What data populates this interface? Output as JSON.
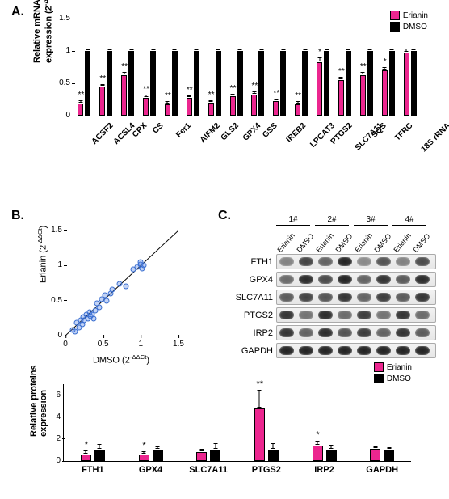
{
  "colors": {
    "erianin": "#ec268f",
    "dmso": "#000000",
    "scatter_point_fill": "rgba(80,130,230,0.35)",
    "scatter_point_stroke": "#3b6fd0",
    "background": "#ffffff",
    "axis": "#000000"
  },
  "panel_labels": {
    "A": "A.",
    "B": "B.",
    "C": "C."
  },
  "legend": {
    "erianin": "Erianin",
    "dmso": "DMSO"
  },
  "panelA": {
    "ylabel_line1": "Relative mRNAs",
    "ylabel_line2": "expression (2",
    "ylabel_sup": "-ΔΔCt",
    "ylabel_tail": ")",
    "ylim": [
      0,
      1.5
    ],
    "yticks": [
      0,
      0.5,
      1,
      1.5
    ],
    "ytick_labels": [
      "0",
      "0.5",
      "1",
      "1.5"
    ],
    "genes": [
      {
        "name": "ACSF2",
        "e": 0.19,
        "d": 1.0,
        "e_err": 0.03,
        "d_err": 0.03,
        "sig": "**"
      },
      {
        "name": "ACSL4",
        "e": 0.45,
        "d": 1.0,
        "e_err": 0.03,
        "d_err": 0.03,
        "sig": "**"
      },
      {
        "name": "CPX",
        "e": 0.62,
        "d": 1.0,
        "e_err": 0.04,
        "d_err": 0.03,
        "sig": "**"
      },
      {
        "name": "CS",
        "e": 0.28,
        "d": 1.0,
        "e_err": 0.03,
        "d_err": 0.03,
        "sig": "**"
      },
      {
        "name": "Fer1",
        "e": 0.18,
        "d": 1.0,
        "e_err": 0.03,
        "d_err": 0.03,
        "sig": "**"
      },
      {
        "name": "AIFM2",
        "e": 0.27,
        "d": 1.0,
        "e_err": 0.03,
        "d_err": 0.03,
        "sig": "**"
      },
      {
        "name": "GLS2",
        "e": 0.2,
        "d": 1.0,
        "e_err": 0.03,
        "d_err": 0.03,
        "sig": "**"
      },
      {
        "name": "GPX4",
        "e": 0.3,
        "d": 1.0,
        "e_err": 0.03,
        "d_err": 0.03,
        "sig": "**"
      },
      {
        "name": "GSS",
        "e": 0.33,
        "d": 1.0,
        "e_err": 0.03,
        "d_err": 0.03,
        "sig": "**"
      },
      {
        "name": "IREB2",
        "e": 0.22,
        "d": 1.0,
        "e_err": 0.03,
        "d_err": 0.03,
        "sig": "**"
      },
      {
        "name": "LPCAT3",
        "e": 0.18,
        "d": 1.0,
        "e_err": 0.03,
        "d_err": 0.03,
        "sig": "**"
      },
      {
        "name": "PTGS2",
        "e": 0.83,
        "d": 1.0,
        "e_err": 0.06,
        "d_err": 0.03,
        "sig": "*"
      },
      {
        "name": "SLC7A11",
        "e": 0.55,
        "d": 1.0,
        "e_err": 0.04,
        "d_err": 0.03,
        "sig": "**"
      },
      {
        "name": "SQS",
        "e": 0.62,
        "d": 1.0,
        "e_err": 0.04,
        "d_err": 0.03,
        "sig": "**"
      },
      {
        "name": "TFRC",
        "e": 0.7,
        "d": 1.0,
        "e_err": 0.04,
        "d_err": 0.03,
        "sig": "*"
      },
      {
        "name": "18S rRNA",
        "e": 0.98,
        "d": 1.0,
        "e_err": 0.04,
        "d_err": 0.03,
        "sig": ""
      }
    ]
  },
  "panelB": {
    "xlabel": "DMSO (2",
    "ylabel": "Erianin (2",
    "sup": "-ΔΔCt",
    "tail": ")",
    "lim": [
      0,
      1.5
    ],
    "ticks": [
      0,
      0.5,
      1,
      1.5
    ],
    "tick_labels": [
      "0",
      "0.5",
      "1",
      "1.5"
    ],
    "points": [
      [
        0.1,
        0.08
      ],
      [
        0.13,
        0.06
      ],
      [
        0.15,
        0.18
      ],
      [
        0.18,
        0.12
      ],
      [
        0.2,
        0.22
      ],
      [
        0.22,
        0.16
      ],
      [
        0.24,
        0.26
      ],
      [
        0.25,
        0.22
      ],
      [
        0.28,
        0.3
      ],
      [
        0.3,
        0.24
      ],
      [
        0.32,
        0.34
      ],
      [
        0.33,
        0.28
      ],
      [
        0.35,
        0.3
      ],
      [
        0.38,
        0.24
      ],
      [
        0.4,
        0.36
      ],
      [
        0.42,
        0.46
      ],
      [
        0.45,
        0.4
      ],
      [
        0.48,
        0.52
      ],
      [
        0.52,
        0.58
      ],
      [
        0.55,
        0.5
      ],
      [
        0.6,
        0.6
      ],
      [
        0.62,
        0.66
      ],
      [
        0.72,
        0.74
      ],
      [
        0.8,
        0.7
      ],
      [
        0.95,
        0.98
      ],
      [
        1.0,
        1.02
      ],
      [
        1.02,
        0.96
      ],
      [
        1.0,
        1.05
      ],
      [
        1.04,
        1.0
      ],
      [
        0.9,
        0.95
      ]
    ]
  },
  "panelC": {
    "groups": [
      "1#",
      "2#",
      "3#",
      "4#"
    ],
    "lane_labels": [
      "Erianin",
      "DMSO"
    ],
    "rows": [
      {
        "name": "FTH1",
        "intensity": [
          0.35,
          0.75,
          0.55,
          0.95,
          0.3,
          0.65,
          0.35,
          0.7
        ]
      },
      {
        "name": "GPX4",
        "intensity": [
          0.5,
          0.9,
          0.7,
          0.95,
          0.55,
          0.85,
          0.6,
          0.9
        ]
      },
      {
        "name": "SLC7A11",
        "intensity": [
          0.6,
          0.75,
          0.65,
          0.85,
          0.55,
          0.8,
          0.6,
          0.85
        ]
      },
      {
        "name": "PTGS2",
        "intensity": [
          0.85,
          0.45,
          0.9,
          0.5,
          0.8,
          0.45,
          0.85,
          0.5
        ]
      },
      {
        "name": "IRP2",
        "intensity": [
          0.85,
          0.55,
          0.9,
          0.65,
          0.8,
          0.55,
          0.85,
          0.6
        ]
      },
      {
        "name": "GAPDH",
        "intensity": [
          0.95,
          0.95,
          0.95,
          0.95,
          0.95,
          0.95,
          0.95,
          0.95
        ]
      }
    ]
  },
  "panelD": {
    "ylabel_line1": "Relative proteins",
    "ylabel_line2": "expression",
    "ylim": [
      0,
      7
    ],
    "yticks": [
      0,
      2,
      4,
      6
    ],
    "ytick_labels": [
      "0",
      "2",
      "4",
      "6"
    ],
    "proteins": [
      {
        "name": "FTH1",
        "e": 0.6,
        "d": 1.0,
        "e_err": 0.25,
        "d_err": 0.45,
        "sig": "*"
      },
      {
        "name": "GPX4",
        "e": 0.6,
        "d": 1.0,
        "e_err": 0.2,
        "d_err": 0.25,
        "sig": "*"
      },
      {
        "name": "SLC7A11",
        "e": 0.8,
        "d": 1.0,
        "e_err": 0.2,
        "d_err": 0.55,
        "sig": ""
      },
      {
        "name": "PTGS2",
        "e": 4.8,
        "d": 1.0,
        "e_err": 1.6,
        "d_err": 0.55,
        "sig": "**"
      },
      {
        "name": "IRP2",
        "e": 1.4,
        "d": 1.0,
        "e_err": 0.35,
        "d_err": 0.4,
        "sig": "*"
      },
      {
        "name": "GAPDH",
        "e": 1.1,
        "d": 1.0,
        "e_err": 0.15,
        "d_err": 0.15,
        "sig": ""
      }
    ]
  }
}
